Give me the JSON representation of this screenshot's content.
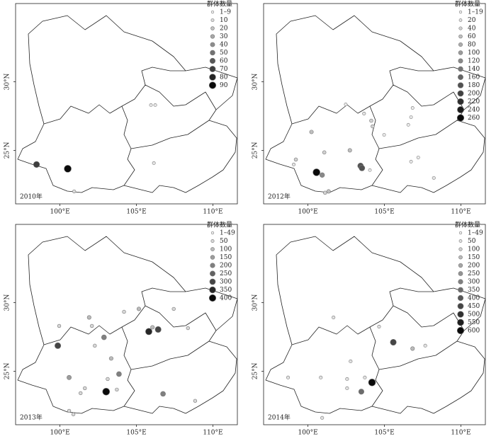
{
  "lon_ticks": [
    {
      "value": 100,
      "label": "100°E"
    },
    {
      "value": 105,
      "label": "105°E"
    },
    {
      "value": 110,
      "label": "110°E"
    }
  ],
  "lat_ticks": [
    {
      "value": 25,
      "label": "25°N"
    },
    {
      "value": 30,
      "label": "30°N"
    }
  ],
  "lon_range": [
    97.1,
    111.6
  ],
  "lat_range": [
    21.1,
    35.7
  ],
  "panels": [
    {
      "year": "2010年",
      "legend_title": "群体数量",
      "legend": [
        "1–9",
        "10",
        "20",
        "30",
        "40",
        "50",
        "60",
        "70",
        "80",
        "90"
      ],
      "points": [
        {
          "lon": 98.47,
          "lat": 23.97,
          "value": 70
        },
        {
          "lon": 100.51,
          "lat": 23.66,
          "value": 90
        },
        {
          "lon": 100.93,
          "lat": 22.01,
          "value": 10
        },
        {
          "lon": 105.95,
          "lat": 28.3,
          "value": 5
        },
        {
          "lon": 106.23,
          "lat": 28.3,
          "value": 5
        },
        {
          "lon": 106.14,
          "lat": 24.07,
          "value": 5
        }
      ]
    },
    {
      "year": "2012年",
      "legend_title": "群体数量",
      "legend": [
        "1–19",
        "20",
        "40",
        "60",
        "80",
        "100",
        "120",
        "140",
        "160",
        "180",
        "200",
        "220",
        "240",
        "260"
      ],
      "points": [
        {
          "lon": 99.21,
          "lat": 24.33,
          "value": 40
        },
        {
          "lon": 99.07,
          "lat": 23.97,
          "value": 20
        },
        {
          "lon": 100.56,
          "lat": 23.4,
          "value": 260
        },
        {
          "lon": 100.93,
          "lat": 23.2,
          "value": 120
        },
        {
          "lon": 101.07,
          "lat": 24.85,
          "value": 40
        },
        {
          "lon": 100.23,
          "lat": 26.34,
          "value": 60
        },
        {
          "lon": 102.74,
          "lat": 25.0,
          "value": 60
        },
        {
          "lon": 103.44,
          "lat": 23.87,
          "value": 180
        },
        {
          "lon": 103.53,
          "lat": 23.71,
          "value": 180
        },
        {
          "lon": 104.05,
          "lat": 23.56,
          "value": 10
        },
        {
          "lon": 101.35,
          "lat": 22.01,
          "value": 60
        },
        {
          "lon": 101.12,
          "lat": 21.91,
          "value": 40
        },
        {
          "lon": 102.47,
          "lat": 28.35,
          "value": 10
        },
        {
          "lon": 103.67,
          "lat": 27.68,
          "value": 20
        },
        {
          "lon": 104.14,
          "lat": 27.16,
          "value": 40
        },
        {
          "lon": 104.23,
          "lat": 26.75,
          "value": 40
        },
        {
          "lon": 106.84,
          "lat": 28.09,
          "value": 10
        },
        {
          "lon": 106.74,
          "lat": 27.42,
          "value": 10
        },
        {
          "lon": 106.56,
          "lat": 26.86,
          "value": 10
        },
        {
          "lon": 104.98,
          "lat": 26.13,
          "value": 10
        },
        {
          "lon": 107.21,
          "lat": 24.48,
          "value": 10
        },
        {
          "lon": 106.74,
          "lat": 24.18,
          "value": 10
        },
        {
          "lon": 108.23,
          "lat": 22.99,
          "value": 20
        }
      ]
    },
    {
      "year": "2013年",
      "legend_title": "群体数量",
      "legend": [
        "1–49",
        "50",
        "100",
        "150",
        "200",
        "250",
        "300",
        "350",
        "400"
      ],
      "points": [
        {
          "lon": 99.95,
          "lat": 28.3,
          "value": 50
        },
        {
          "lon": 99.86,
          "lat": 26.86,
          "value": 300
        },
        {
          "lon": 101.91,
          "lat": 28.92,
          "value": 100
        },
        {
          "lon": 102.09,
          "lat": 28.3,
          "value": 50
        },
        {
          "lon": 102.28,
          "lat": 26.86,
          "value": 50
        },
        {
          "lon": 102.88,
          "lat": 27.47,
          "value": 200
        },
        {
          "lon": 103.35,
          "lat": 25.93,
          "value": 100
        },
        {
          "lon": 103.86,
          "lat": 24.79,
          "value": 200
        },
        {
          "lon": 103.02,
          "lat": 23.51,
          "value": 400
        },
        {
          "lon": 103.72,
          "lat": 23.66,
          "value": 50
        },
        {
          "lon": 103.12,
          "lat": 24.43,
          "value": 50
        },
        {
          "lon": 100.6,
          "lat": 24.54,
          "value": 150
        },
        {
          "lon": 101.63,
          "lat": 23.76,
          "value": 50
        },
        {
          "lon": 101.35,
          "lat": 23.4,
          "value": 50
        },
        {
          "lon": 100.6,
          "lat": 22.11,
          "value": 50
        },
        {
          "lon": 100.88,
          "lat": 21.86,
          "value": 50
        },
        {
          "lon": 104.19,
          "lat": 29.33,
          "value": 50
        },
        {
          "lon": 105.16,
          "lat": 29.54,
          "value": 100
        },
        {
          "lon": 106.42,
          "lat": 28.04,
          "value": 300
        },
        {
          "lon": 105.81,
          "lat": 27.89,
          "value": 350
        },
        {
          "lon": 106.05,
          "lat": 28.2,
          "value": 100
        },
        {
          "lon": 108.37,
          "lat": 28.14,
          "value": 50
        },
        {
          "lon": 107.44,
          "lat": 29.54,
          "value": 50
        },
        {
          "lon": 106.74,
          "lat": 23.35,
          "value": 200
        },
        {
          "lon": 108.84,
          "lat": 22.84,
          "value": 50
        }
      ]
    },
    {
      "year": "2014年",
      "legend_title": "群体数量",
      "legend": [
        "1–49",
        "50",
        "100",
        "150",
        "200",
        "250",
        "300",
        "350",
        "400",
        "450",
        "500",
        "550",
        "600"
      ],
      "points": [
        {
          "lon": 101.67,
          "lat": 28.92,
          "value": 50
        },
        {
          "lon": 104.65,
          "lat": 28.25,
          "value": 50
        },
        {
          "lon": 105.58,
          "lat": 27.11,
          "value": 450
        },
        {
          "lon": 106.84,
          "lat": 26.65,
          "value": 150
        },
        {
          "lon": 107.67,
          "lat": 26.86,
          "value": 50
        },
        {
          "lon": 98.7,
          "lat": 24.54,
          "value": 50
        },
        {
          "lon": 100.84,
          "lat": 24.54,
          "value": 50
        },
        {
          "lon": 102.56,
          "lat": 24.43,
          "value": 50
        },
        {
          "lon": 102.56,
          "lat": 23.76,
          "value": 50
        },
        {
          "lon": 103.49,
          "lat": 23.51,
          "value": 350
        },
        {
          "lon": 104.19,
          "lat": 24.18,
          "value": 600
        },
        {
          "lon": 103.72,
          "lat": 24.54,
          "value": 50
        },
        {
          "lon": 102.79,
          "lat": 25.72,
          "value": 50
        },
        {
          "lon": 100.93,
          "lat": 21.6,
          "value": 50
        }
      ]
    }
  ]
}
